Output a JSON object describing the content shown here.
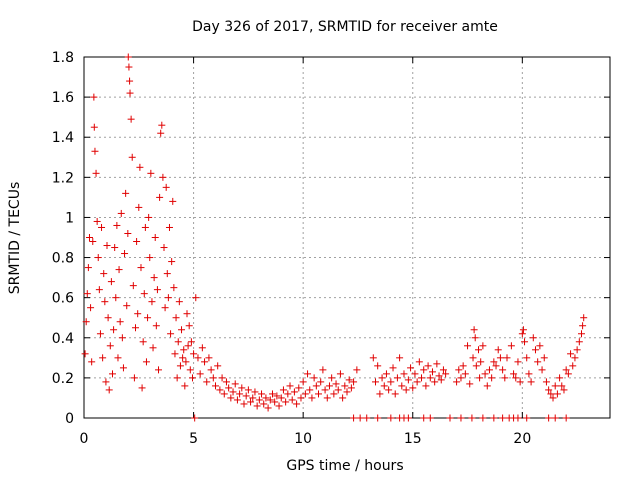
{
  "chart_data": {
    "type": "scatter",
    "title": "Day 326 of 2017, SRMTID for receiver amte",
    "xlabel": "GPS time / hours",
    "ylabel": "SRMTID / TECUs",
    "xlim": [
      0,
      24
    ],
    "ylim": [
      0,
      1.8
    ],
    "xticks": [
      "0",
      "5",
      "10",
      "15",
      "20"
    ],
    "yticks": [
      "0",
      "0.2",
      "0.4",
      "0.6",
      "0.8",
      "1",
      "1.2",
      "1.4",
      "1.6",
      "1.8"
    ],
    "grid": true,
    "marker": "+",
    "color": "#e00000",
    "series": [
      {
        "name": "SRMTID",
        "points": [
          [
            0.05,
            0.32
          ],
          [
            0.1,
            0.48
          ],
          [
            0.15,
            0.62
          ],
          [
            0.2,
            0.75
          ],
          [
            0.25,
            0.9
          ],
          [
            0.3,
            0.55
          ],
          [
            0.35,
            0.28
          ],
          [
            0.4,
            0.88
          ],
          [
            0.45,
            1.6
          ],
          [
            0.47,
            1.45
          ],
          [
            0.5,
            1.33
          ],
          [
            0.55,
            1.22
          ],
          [
            0.6,
            0.98
          ],
          [
            0.65,
            0.8
          ],
          [
            0.7,
            0.64
          ],
          [
            0.75,
            0.42
          ],
          [
            0.8,
            0.95
          ],
          [
            0.85,
            0.3
          ],
          [
            0.9,
            0.72
          ],
          [
            0.95,
            0.58
          ],
          [
            1.0,
            0.18
          ],
          [
            1.05,
            0.86
          ],
          [
            1.1,
            0.5
          ],
          [
            1.15,
            0.14
          ],
          [
            1.2,
            0.36
          ],
          [
            1.25,
            0.68
          ],
          [
            1.3,
            0.22
          ],
          [
            1.35,
            0.44
          ],
          [
            1.4,
            0.85
          ],
          [
            1.45,
            0.6
          ],
          [
            1.5,
            0.96
          ],
          [
            1.55,
            0.3
          ],
          [
            1.6,
            0.74
          ],
          [
            1.65,
            0.48
          ],
          [
            1.7,
            1.02
          ],
          [
            1.75,
            0.4
          ],
          [
            1.8,
            0.25
          ],
          [
            1.85,
            0.82
          ],
          [
            1.9,
            1.12
          ],
          [
            1.95,
            0.56
          ],
          [
            2.0,
            0.92
          ],
          [
            2.02,
            1.8
          ],
          [
            2.05,
            1.75
          ],
          [
            2.08,
            1.68
          ],
          [
            2.1,
            1.62
          ],
          [
            2.15,
            1.49
          ],
          [
            2.2,
            1.3
          ],
          [
            2.25,
            0.66
          ],
          [
            2.3,
            0.2
          ],
          [
            2.35,
            0.45
          ],
          [
            2.4,
            0.88
          ],
          [
            2.45,
            0.52
          ],
          [
            2.5,
            1.05
          ],
          [
            2.55,
            1.25
          ],
          [
            2.6,
            0.75
          ],
          [
            2.65,
            0.15
          ],
          [
            2.7,
            0.38
          ],
          [
            2.75,
            0.62
          ],
          [
            2.8,
            0.95
          ],
          [
            2.85,
            0.28
          ],
          [
            2.9,
            0.5
          ],
          [
            2.95,
            1.0
          ],
          [
            3.0,
            0.8
          ],
          [
            3.05,
            1.22
          ],
          [
            3.1,
            0.58
          ],
          [
            3.15,
            0.35
          ],
          [
            3.2,
            0.7
          ],
          [
            3.25,
            0.9
          ],
          [
            3.3,
            0.46
          ],
          [
            3.35,
            0.64
          ],
          [
            3.4,
            0.24
          ],
          [
            3.45,
            1.1
          ],
          [
            3.5,
            1.42
          ],
          [
            3.55,
            1.46
          ],
          [
            3.6,
            1.2
          ],
          [
            3.65,
            0.85
          ],
          [
            3.7,
            0.55
          ],
          [
            3.75,
            1.15
          ],
          [
            3.8,
            0.72
          ],
          [
            3.85,
            0.6
          ],
          [
            3.9,
            0.95
          ],
          [
            3.95,
            0.42
          ],
          [
            4.0,
            0.78
          ],
          [
            4.05,
            1.08
          ],
          [
            4.1,
            0.65
          ],
          [
            4.15,
            0.32
          ],
          [
            4.2,
            0.5
          ],
          [
            4.25,
            0.2
          ],
          [
            4.3,
            0.38
          ],
          [
            4.35,
            0.58
          ],
          [
            4.4,
            0.26
          ],
          [
            4.45,
            0.44
          ],
          [
            4.5,
            0.3
          ],
          [
            4.55,
            0.34
          ],
          [
            4.6,
            0.16
          ],
          [
            4.65,
            0.28
          ],
          [
            4.7,
            0.52
          ],
          [
            4.75,
            0.36
          ],
          [
            4.8,
            0.46
          ],
          [
            4.85,
            0.24
          ],
          [
            4.9,
            0.38
          ],
          [
            4.95,
            0.2
          ],
          [
            5.0,
            0.32
          ],
          [
            5.1,
            0.6
          ],
          [
            5.2,
            0.3
          ],
          [
            5.3,
            0.22
          ],
          [
            5.4,
            0.35
          ],
          [
            5.5,
            0.28
          ],
          [
            5.6,
            0.18
          ],
          [
            5.7,
            0.3
          ],
          [
            5.8,
            0.24
          ],
          [
            5.9,
            0.2
          ],
          [
            6.0,
            0.16
          ],
          [
            6.1,
            0.26
          ],
          [
            6.2,
            0.14
          ],
          [
            6.3,
            0.2
          ],
          [
            6.4,
            0.12
          ],
          [
            6.5,
            0.18
          ],
          [
            6.6,
            0.15
          ],
          [
            6.7,
            0.1
          ],
          [
            6.8,
            0.13
          ],
          [
            6.9,
            0.17
          ],
          [
            7.0,
            0.09
          ],
          [
            7.1,
            0.12
          ],
          [
            7.2,
            0.15
          ],
          [
            7.3,
            0.07
          ],
          [
            7.4,
            0.11
          ],
          [
            7.5,
            0.14
          ],
          [
            7.6,
            0.08
          ],
          [
            7.7,
            0.1
          ],
          [
            7.8,
            0.13
          ],
          [
            7.9,
            0.06
          ],
          [
            8.0,
            0.09
          ],
          [
            8.1,
            0.12
          ],
          [
            8.2,
            0.07
          ],
          [
            8.3,
            0.1
          ],
          [
            8.4,
            0.05
          ],
          [
            8.5,
            0.09
          ],
          [
            8.6,
            0.12
          ],
          [
            8.7,
            0.08
          ],
          [
            8.8,
            0.11
          ],
          [
            8.9,
            0.06
          ],
          [
            9.0,
            0.1
          ],
          [
            9.1,
            0.14
          ],
          [
            9.2,
            0.08
          ],
          [
            9.3,
            0.12
          ],
          [
            9.4,
            0.16
          ],
          [
            9.5,
            0.09
          ],
          [
            9.6,
            0.13
          ],
          [
            9.7,
            0.07
          ],
          [
            9.8,
            0.15
          ],
          [
            9.9,
            0.1
          ],
          [
            10.0,
            0.18
          ],
          [
            10.1,
            0.12
          ],
          [
            10.2,
            0.22
          ],
          [
            10.3,
            0.14
          ],
          [
            10.4,
            0.1
          ],
          [
            10.5,
            0.2
          ],
          [
            10.6,
            0.16
          ],
          [
            10.7,
            0.12
          ],
          [
            10.8,
            0.18
          ],
          [
            10.9,
            0.24
          ],
          [
            11.0,
            0.14
          ],
          [
            11.1,
            0.1
          ],
          [
            11.2,
            0.16
          ],
          [
            11.3,
            0.2
          ],
          [
            11.4,
            0.12
          ],
          [
            11.5,
            0.17
          ],
          [
            11.6,
            0.14
          ],
          [
            11.7,
            0.22
          ],
          [
            11.8,
            0.1
          ],
          [
            11.9,
            0.16
          ],
          [
            12.0,
            0.13
          ],
          [
            12.1,
            0.19
          ],
          [
            12.2,
            0.15
          ],
          [
            12.3,
            0.18
          ],
          [
            12.45,
            0.24
          ],
          [
            13.2,
            0.3
          ],
          [
            13.3,
            0.18
          ],
          [
            13.4,
            0.26
          ],
          [
            13.5,
            0.12
          ],
          [
            13.6,
            0.2
          ],
          [
            13.7,
            0.16
          ],
          [
            13.8,
            0.22
          ],
          [
            13.9,
            0.14
          ],
          [
            14.0,
            0.18
          ],
          [
            14.1,
            0.25
          ],
          [
            14.2,
            0.12
          ],
          [
            14.3,
            0.2
          ],
          [
            14.4,
            0.3
          ],
          [
            14.5,
            0.16
          ],
          [
            14.6,
            0.22
          ],
          [
            14.7,
            0.14
          ],
          [
            14.8,
            0.19
          ],
          [
            14.9,
            0.25
          ],
          [
            15.0,
            0.15
          ],
          [
            15.1,
            0.22
          ],
          [
            15.2,
            0.18
          ],
          [
            15.3,
            0.28
          ],
          [
            15.4,
            0.2
          ],
          [
            15.5,
            0.24
          ],
          [
            15.6,
            0.16
          ],
          [
            15.7,
            0.26
          ],
          [
            15.8,
            0.2
          ],
          [
            15.9,
            0.23
          ],
          [
            16.0,
            0.18
          ],
          [
            16.1,
            0.27
          ],
          [
            16.2,
            0.21
          ],
          [
            16.3,
            0.19
          ],
          [
            16.4,
            0.24
          ],
          [
            16.5,
            0.22
          ],
          [
            17.0,
            0.18
          ],
          [
            17.1,
            0.24
          ],
          [
            17.2,
            0.2
          ],
          [
            17.3,
            0.26
          ],
          [
            17.4,
            0.22
          ],
          [
            17.5,
            0.36
          ],
          [
            17.6,
            0.17
          ],
          [
            17.75,
            0.3
          ],
          [
            17.8,
            0.44
          ],
          [
            17.85,
            0.4
          ],
          [
            17.9,
            0.26
          ],
          [
            18.0,
            0.34
          ],
          [
            18.05,
            0.2
          ],
          [
            18.1,
            0.28
          ],
          [
            18.2,
            0.36
          ],
          [
            18.3,
            0.22
          ],
          [
            18.4,
            0.16
          ],
          [
            18.5,
            0.24
          ],
          [
            18.6,
            0.2
          ],
          [
            18.7,
            0.28
          ],
          [
            18.8,
            0.26
          ],
          [
            18.9,
            0.34
          ],
          [
            19.0,
            0.3
          ],
          [
            19.1,
            0.24
          ],
          [
            19.2,
            0.2
          ],
          [
            19.3,
            0.3
          ],
          [
            19.5,
            0.36
          ],
          [
            19.6,
            0.22
          ],
          [
            19.7,
            0.2
          ],
          [
            19.8,
            0.28
          ],
          [
            19.9,
            0.18
          ],
          [
            20.0,
            0.42
          ],
          [
            20.05,
            0.44
          ],
          [
            20.1,
            0.38
          ],
          [
            20.2,
            0.3
          ],
          [
            20.3,
            0.22
          ],
          [
            20.4,
            0.18
          ],
          [
            20.5,
            0.4
          ],
          [
            20.6,
            0.34
          ],
          [
            20.7,
            0.28
          ],
          [
            20.8,
            0.36
          ],
          [
            20.9,
            0.24
          ],
          [
            21.0,
            0.3
          ],
          [
            21.1,
            0.18
          ],
          [
            21.2,
            0.14
          ],
          [
            21.3,
            0.12
          ],
          [
            21.4,
            0.1
          ],
          [
            21.5,
            0.16
          ],
          [
            21.6,
            0.12
          ],
          [
            21.7,
            0.2
          ],
          [
            21.8,
            0.16
          ],
          [
            21.9,
            0.14
          ],
          [
            22.0,
            0.24
          ],
          [
            22.1,
            0.22
          ],
          [
            22.2,
            0.32
          ],
          [
            22.3,
            0.26
          ],
          [
            22.4,
            0.3
          ],
          [
            22.5,
            0.34
          ],
          [
            22.6,
            0.38
          ],
          [
            22.7,
            0.42
          ],
          [
            22.75,
            0.46
          ],
          [
            22.8,
            0.5
          ],
          [
            5.05,
            0.0
          ],
          [
            12.3,
            0.0
          ],
          [
            12.6,
            0.0
          ],
          [
            12.9,
            0.0
          ],
          [
            13.4,
            0.0
          ],
          [
            14.0,
            0.0
          ],
          [
            14.4,
            0.0
          ],
          [
            14.6,
            0.0
          ],
          [
            14.8,
            0.0
          ],
          [
            15.5,
            0.0
          ],
          [
            15.8,
            0.0
          ],
          [
            16.7,
            0.0
          ],
          [
            17.2,
            0.0
          ],
          [
            17.7,
            0.0
          ],
          [
            18.2,
            0.0
          ],
          [
            18.7,
            0.0
          ],
          [
            19.1,
            0.0
          ],
          [
            19.4,
            0.0
          ],
          [
            19.6,
            0.0
          ],
          [
            19.8,
            0.0
          ],
          [
            20.2,
            0.0
          ],
          [
            21.2,
            0.0
          ],
          [
            21.5,
            0.0
          ],
          [
            22.0,
            0.0
          ]
        ]
      }
    ]
  }
}
